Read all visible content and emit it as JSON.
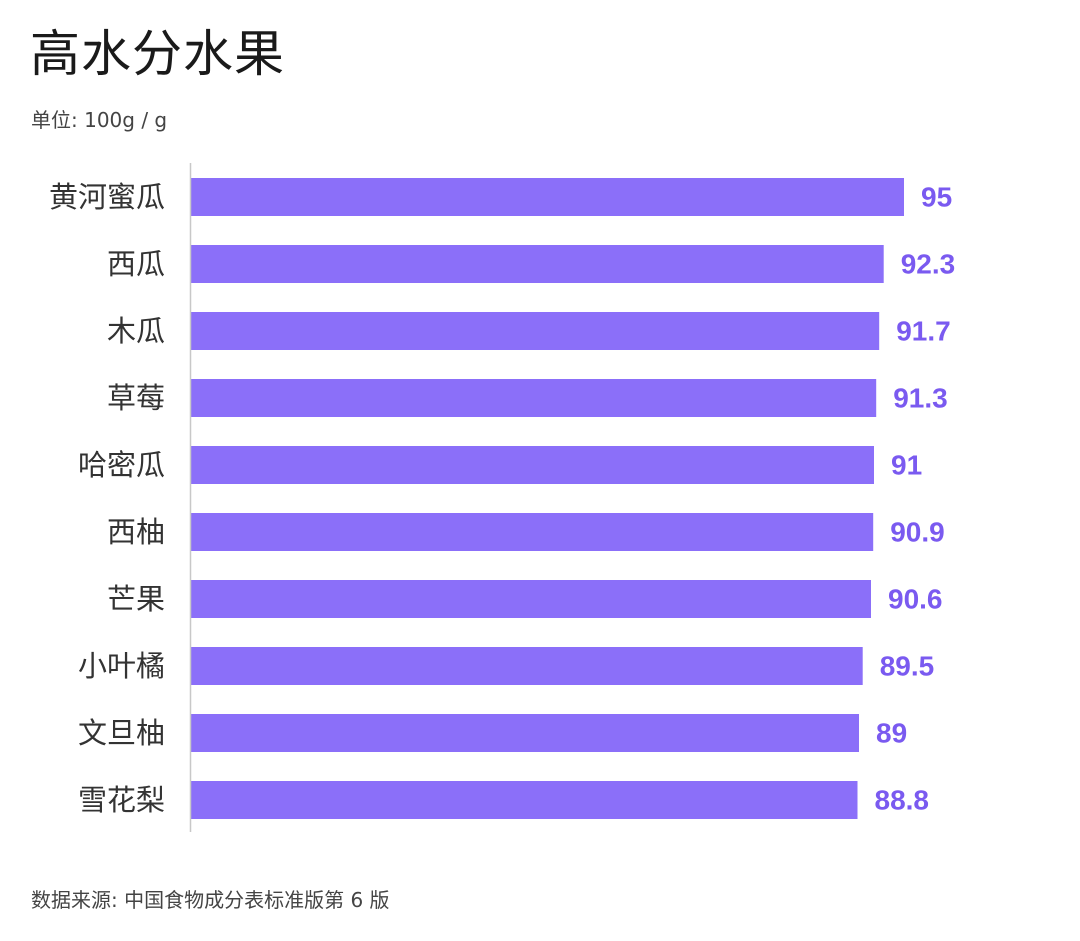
{
  "title": "高水分水果",
  "subtitle": "单位: 100g / g",
  "source": "数据来源: 中国食物成分表标准版第 6 版",
  "colors": {
    "bar": "#8B6FF9",
    "value_label": "#7A5AF0",
    "axis": "#c8c8c8",
    "category_label": "#333333"
  },
  "chart_data": {
    "type": "bar",
    "orientation": "horizontal",
    "categories": [
      "黄河蜜瓜",
      "西瓜",
      "木瓜",
      "草莓",
      "哈密瓜",
      "西柚",
      "芒果",
      "小叶橘",
      "文旦柚",
      "雪花梨"
    ],
    "values": [
      95,
      92.3,
      91.7,
      91.3,
      91,
      90.9,
      90.6,
      89.5,
      89,
      88.8
    ],
    "value_labels": [
      "95",
      "92.3",
      "91.7",
      "91.3",
      "91",
      "90.9",
      "90.6",
      "89.5",
      "89",
      "88.8"
    ],
    "title": "高水分水果",
    "xlabel": "",
    "ylabel": "",
    "xlim": [
      0,
      95
    ],
    "grid": false,
    "legend": "none"
  }
}
